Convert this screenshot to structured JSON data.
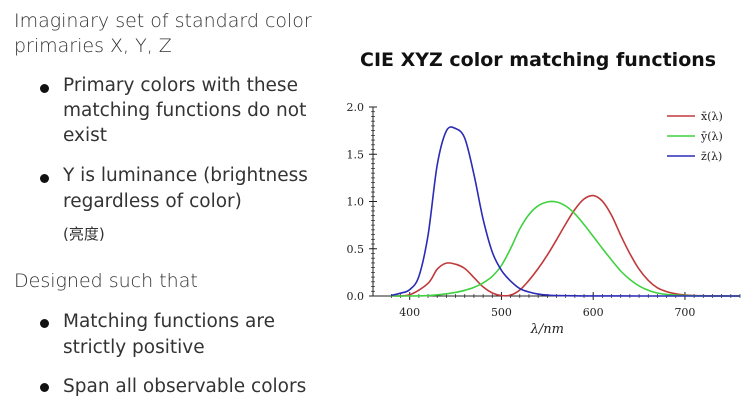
{
  "slide": {
    "intro_line1": "Imaginary set of standard color",
    "intro_line2": "primaries X, Y, Z",
    "bullet1_line1": "Primary colors with these",
    "bullet1_line2": "matching functions do not",
    "bullet1_line3": "exist",
    "bullet2_line1": "Y is luminance (brightness",
    "bullet2_line2": "regardless of color)",
    "bullet2_note": "(亮度)",
    "designed": "Designed such that",
    "bullet3_line1": "Matching functions are",
    "bullet3_line2": "strictly positive",
    "bullet4_line1": "Span all observable colors"
  },
  "chart_data": {
    "type": "line",
    "title": "CIE XYZ color matching functions",
    "xlabel": "λ/nm",
    "ylabel": "",
    "xlim": [
      360,
      760
    ],
    "ylim": [
      0,
      2.0
    ],
    "xticks": [
      "400",
      "500",
      "600",
      "700"
    ],
    "yticks": [
      "0.0",
      "0.5",
      "1.0",
      "1.5",
      "2.0"
    ],
    "legend_position": "top-right",
    "series": [
      {
        "name": "x̄(λ)",
        "color": "#c0393b",
        "x": [
          380,
          400,
          420,
          430,
          440,
          450,
          460,
          470,
          480,
          490,
          500,
          510,
          520,
          530,
          540,
          550,
          560,
          570,
          580,
          590,
          600,
          610,
          620,
          630,
          640,
          650,
          660,
          670,
          680,
          690,
          700,
          720,
          740,
          760
        ],
        "y": [
          0.001,
          0.014,
          0.134,
          0.284,
          0.348,
          0.336,
          0.291,
          0.195,
          0.096,
          0.032,
          0.005,
          0.009,
          0.063,
          0.166,
          0.29,
          0.433,
          0.595,
          0.762,
          0.916,
          1.026,
          1.062,
          1.003,
          0.854,
          0.642,
          0.448,
          0.284,
          0.165,
          0.087,
          0.047,
          0.023,
          0.011,
          0.003,
          0.001,
          0.0
        ]
      },
      {
        "name": "ȳ(λ)",
        "color": "#3fd13f",
        "x": [
          380,
          400,
          420,
          440,
          450,
          460,
          470,
          480,
          490,
          500,
          510,
          520,
          530,
          540,
          550,
          560,
          570,
          580,
          590,
          600,
          610,
          620,
          630,
          640,
          650,
          660,
          670,
          680,
          700,
          720,
          740,
          760
        ],
        "y": [
          0.0,
          0.0004,
          0.004,
          0.023,
          0.038,
          0.06,
          0.091,
          0.139,
          0.208,
          0.323,
          0.503,
          0.71,
          0.862,
          0.954,
          0.995,
          0.995,
          0.952,
          0.87,
          0.757,
          0.631,
          0.503,
          0.381,
          0.265,
          0.175,
          0.107,
          0.061,
          0.032,
          0.017,
          0.004,
          0.001,
          0.0,
          0.0
        ]
      },
      {
        "name": "z̄(λ)",
        "color": "#2b2bb5",
        "x": [
          380,
          390,
          400,
          410,
          420,
          430,
          440,
          450,
          460,
          470,
          480,
          490,
          500,
          510,
          520,
          530,
          540,
          550,
          560,
          580,
          600,
          650,
          700,
          760
        ],
        "y": [
          0.006,
          0.03,
          0.068,
          0.207,
          0.646,
          1.386,
          1.747,
          1.772,
          1.669,
          1.288,
          0.813,
          0.465,
          0.272,
          0.158,
          0.078,
          0.042,
          0.02,
          0.009,
          0.004,
          0.002,
          0.001,
          0.0,
          0.0,
          0.0
        ]
      }
    ]
  }
}
